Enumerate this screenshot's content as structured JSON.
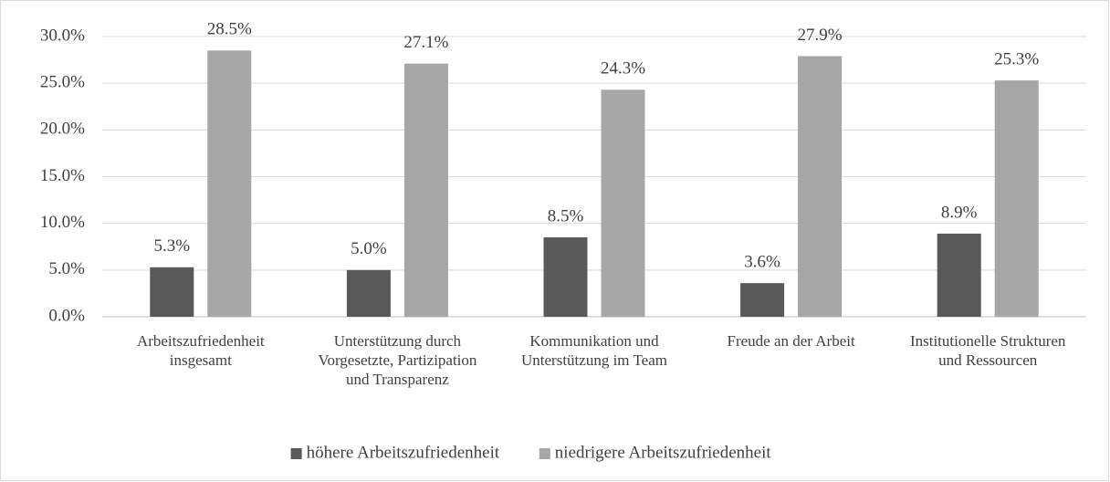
{
  "chart_data": {
    "type": "bar",
    "categories": [
      "Arbeitszufriedenheit insgesamt",
      "Unterstützung durch Vorgesetzte, Partizipation und Transparenz",
      "Kommunikation und Unterstützung im Team",
      "Freude an der Arbeit",
      "Institutionelle Strukturen und Ressourcen"
    ],
    "series": [
      {
        "name": "höhere Arbeitszufriedenheit",
        "color": "#595959",
        "values": [
          5.3,
          5.0,
          8.5,
          3.6,
          8.9
        ],
        "value_labels": [
          "5.3%",
          "5.0%",
          "8.5%",
          "3.6%",
          "8.9%"
        ]
      },
      {
        "name": "niedrigere Arbeitszufriedenheit",
        "color": "#a6a6a6",
        "values": [
          28.5,
          27.1,
          24.3,
          27.9,
          25.3
        ],
        "value_labels": [
          "28.5%",
          "27.1%",
          "24.3%",
          "27.9%",
          "25.3%"
        ]
      }
    ],
    "ylim": [
      0,
      30
    ],
    "yticks": [
      {
        "value": 0,
        "label": "0.0%"
      },
      {
        "value": 5,
        "label": "5.0%"
      },
      {
        "value": 10,
        "label": "10.0%"
      },
      {
        "value": 15,
        "label": "15.0%"
      },
      {
        "value": 20,
        "label": "20.0%"
      },
      {
        "value": 25,
        "label": "25.0%"
      },
      {
        "value": 30,
        "label": "30.0%"
      }
    ],
    "grid": true,
    "legend": "bottom"
  }
}
